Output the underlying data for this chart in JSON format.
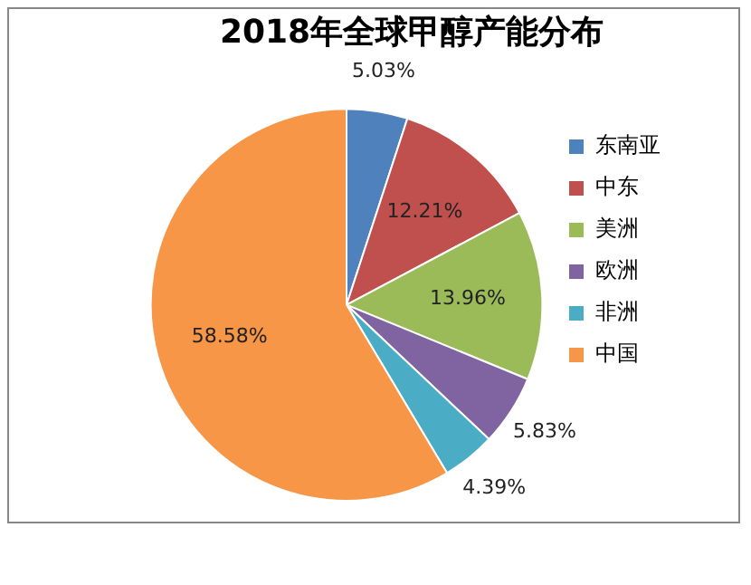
{
  "chart_data": {
    "type": "pie",
    "title": "2018年全球甲醇产能分布",
    "categories": [
      "东南亚",
      "中东",
      "美洲",
      "欧洲",
      "非洲",
      "中国"
    ],
    "values": [
      5.03,
      12.21,
      13.96,
      5.83,
      4.39,
      58.58
    ],
    "colors": [
      "#4f81bd",
      "#c0504d",
      "#9bbb59",
      "#8064a2",
      "#4bacc6",
      "#f79646"
    ],
    "value_labels": [
      "5.03%",
      "12.21%",
      "13.96%",
      "5.83%",
      "4.39%",
      "58.58%"
    ],
    "legend": "right"
  }
}
